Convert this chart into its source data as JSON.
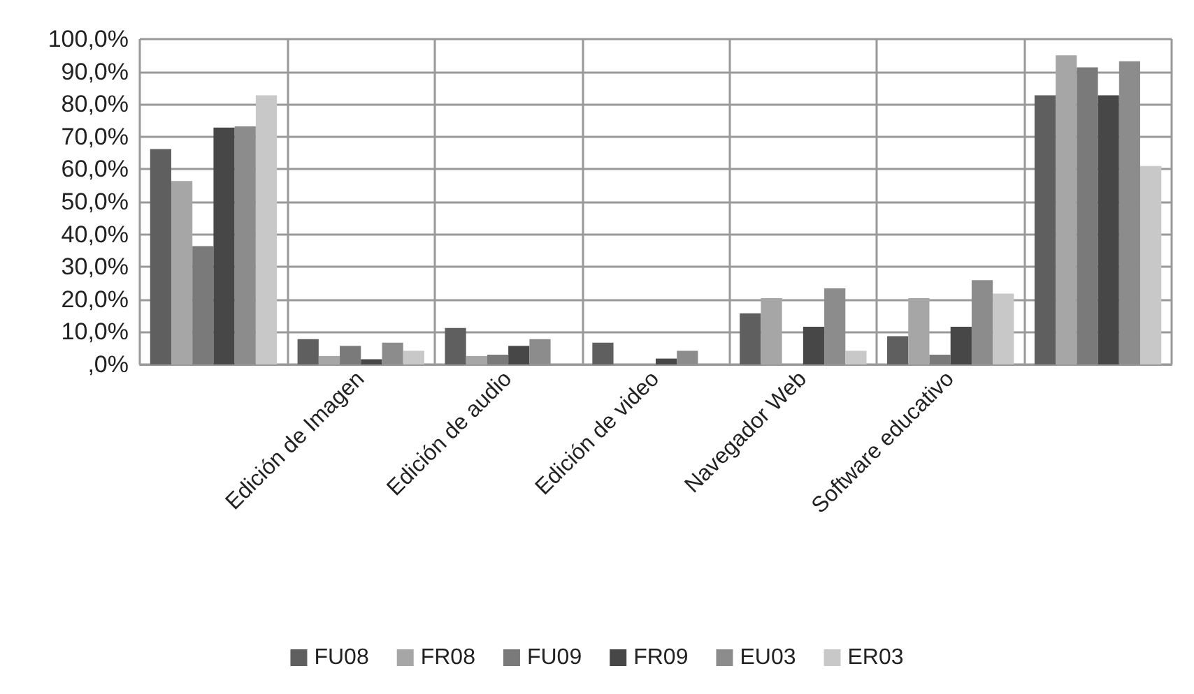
{
  "chart_data": {
    "type": "bar",
    "categories": [
      null,
      "Edición de Imagen",
      "Edición de audio",
      "Edición de video",
      "Navegador Web",
      "Software educativo",
      null
    ],
    "series": [
      {
        "name": "FU08",
        "color": "#5f5f5f",
        "values": [
          66.2,
          7.8,
          11.2,
          6.7,
          15.7,
          8.7,
          82.7
        ]
      },
      {
        "name": "FR08",
        "color": "#a6a6a6",
        "values": [
          56.4,
          2.6,
          2.6,
          0,
          20.4,
          20.4,
          95.0
        ]
      },
      {
        "name": "FU09",
        "color": "#7a7a7a",
        "values": [
          36.4,
          5.7,
          3.0,
          0,
          0,
          3.0,
          91.3
        ]
      },
      {
        "name": "FR09",
        "color": "#474747",
        "values": [
          72.8,
          1.6,
          5.7,
          1.8,
          11.6,
          11.6,
          82.7
        ]
      },
      {
        "name": "EU03",
        "color": "#8c8c8c",
        "values": [
          73.2,
          6.7,
          7.8,
          4.2,
          23.4,
          25.9,
          93.2
        ]
      },
      {
        "name": "ER03",
        "color": "#c8c8c8",
        "values": [
          82.7,
          4.2,
          0,
          0,
          4.2,
          21.8,
          61.0
        ]
      }
    ],
    "ylim": [
      0,
      100
    ],
    "yticks": [
      {
        "value": 0,
        "label": ",0%"
      },
      {
        "value": 10,
        "label": "10,0%"
      },
      {
        "value": 20,
        "label": "20,0%"
      },
      {
        "value": 30,
        "label": "30,0%"
      },
      {
        "value": 40,
        "label": "40,0%"
      },
      {
        "value": 50,
        "label": "50,0%"
      },
      {
        "value": 60,
        "label": "60,0%"
      },
      {
        "value": 70,
        "label": "70,0%"
      },
      {
        "value": 80,
        "label": "80,0%"
      },
      {
        "value": 90,
        "label": "90,0%"
      },
      {
        "value": 100,
        "label": "100,0%"
      }
    ],
    "grid": true,
    "legend": "bottom"
  }
}
